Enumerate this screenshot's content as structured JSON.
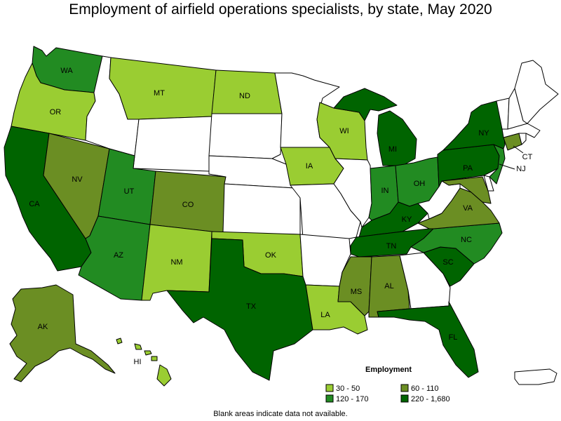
{
  "title": "Employment of airfield operations specialists, by state, May 2020",
  "footnote": "Blank areas indicate data not available.",
  "legend": {
    "title": "Employment",
    "items": [
      {
        "label": "30 - 50",
        "color": "#9acd32"
      },
      {
        "label": "60 - 110",
        "color": "#6b8e23"
      },
      {
        "label": "120 - 170",
        "color": "#228b22"
      },
      {
        "label": "220 - 1,680",
        "color": "#006400"
      }
    ]
  },
  "no_data_color": "#ffffff",
  "states": [
    {
      "abbr": "WA",
      "bin": "120 - 170"
    },
    {
      "abbr": "OR",
      "bin": "30 - 50"
    },
    {
      "abbr": "CA",
      "bin": "220 - 1,680"
    },
    {
      "abbr": "NV",
      "bin": "60 - 110"
    },
    {
      "abbr": "ID",
      "bin": null
    },
    {
      "abbr": "MT",
      "bin": "30 - 50"
    },
    {
      "abbr": "WY",
      "bin": null
    },
    {
      "abbr": "UT",
      "bin": "120 - 170"
    },
    {
      "abbr": "AZ",
      "bin": "120 - 170"
    },
    {
      "abbr": "CO",
      "bin": "60 - 110"
    },
    {
      "abbr": "NM",
      "bin": "30 - 50"
    },
    {
      "abbr": "ND",
      "bin": "30 - 50"
    },
    {
      "abbr": "SD",
      "bin": null
    },
    {
      "abbr": "NE",
      "bin": null
    },
    {
      "abbr": "KS",
      "bin": null
    },
    {
      "abbr": "OK",
      "bin": "30 - 50"
    },
    {
      "abbr": "TX",
      "bin": "220 - 1,680"
    },
    {
      "abbr": "MN",
      "bin": null
    },
    {
      "abbr": "IA",
      "bin": "30 - 50"
    },
    {
      "abbr": "MO",
      "bin": null
    },
    {
      "abbr": "AR",
      "bin": null
    },
    {
      "abbr": "LA",
      "bin": "30 - 50"
    },
    {
      "abbr": "WI",
      "bin": "30 - 50"
    },
    {
      "abbr": "IL",
      "bin": null
    },
    {
      "abbr": "MI",
      "bin": "220 - 1,680"
    },
    {
      "abbr": "IN",
      "bin": "120 - 170"
    },
    {
      "abbr": "OH",
      "bin": "120 - 170"
    },
    {
      "abbr": "KY",
      "bin": "220 - 1,680"
    },
    {
      "abbr": "TN",
      "bin": "220 - 1,680"
    },
    {
      "abbr": "MS",
      "bin": "60 - 110"
    },
    {
      "abbr": "AL",
      "bin": "60 - 110"
    },
    {
      "abbr": "GA",
      "bin": null
    },
    {
      "abbr": "FL",
      "bin": "220 - 1,680"
    },
    {
      "abbr": "SC",
      "bin": "220 - 1,680"
    },
    {
      "abbr": "NC",
      "bin": "120 - 170"
    },
    {
      "abbr": "VA",
      "bin": "60 - 110"
    },
    {
      "abbr": "WV",
      "bin": null
    },
    {
      "abbr": "MD",
      "bin": "60 - 110"
    },
    {
      "abbr": "DE",
      "bin": null
    },
    {
      "abbr": "PA",
      "bin": "220 - 1,680"
    },
    {
      "abbr": "NJ",
      "bin": "120 - 170"
    },
    {
      "abbr": "NY",
      "bin": "220 - 1,680"
    },
    {
      "abbr": "CT",
      "bin": "60 - 110"
    },
    {
      "abbr": "RI",
      "bin": null
    },
    {
      "abbr": "MA",
      "bin": null
    },
    {
      "abbr": "VT",
      "bin": null
    },
    {
      "abbr": "NH",
      "bin": null
    },
    {
      "abbr": "ME",
      "bin": null
    },
    {
      "abbr": "AK",
      "bin": "60 - 110"
    },
    {
      "abbr": "HI",
      "bin": "30 - 50"
    },
    {
      "abbr": "PR",
      "bin": null
    }
  ]
}
